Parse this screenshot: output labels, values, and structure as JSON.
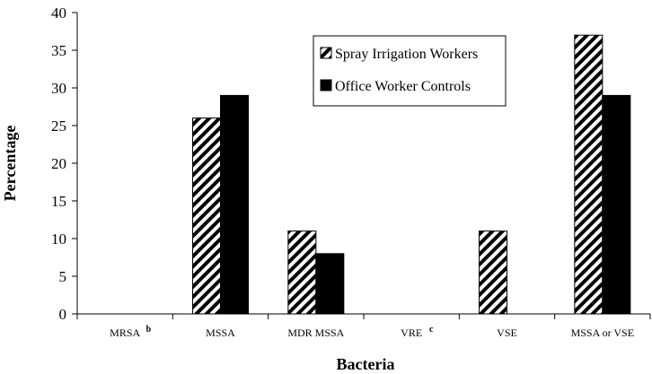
{
  "chart_data": {
    "type": "bar",
    "title": "",
    "xlabel": "Bacteria",
    "ylabel": "Percentage",
    "ylim": [
      0,
      40
    ],
    "yticks": [
      0,
      5,
      10,
      15,
      20,
      25,
      30,
      35,
      40
    ],
    "grid": false,
    "legend_position": "top-right",
    "categories": [
      {
        "label": "MRSA",
        "superscript": "b"
      },
      {
        "label": "MSSA",
        "superscript": ""
      },
      {
        "label": "MDR MSSA",
        "superscript": ""
      },
      {
        "label": "VRE",
        "superscript": "c"
      },
      {
        "label": "VSE",
        "superscript": ""
      },
      {
        "label": "MSSA or VSE",
        "superscript": ""
      }
    ],
    "series": [
      {
        "name": "Spray Irrigation Workers",
        "pattern": "diagonal-hatch",
        "color": "#000000",
        "values": [
          0,
          26,
          11,
          0,
          11,
          37
        ]
      },
      {
        "name": "Office Worker Controls",
        "pattern": "solid",
        "color": "#000000",
        "values": [
          0,
          29,
          8,
          0,
          0,
          29
        ]
      }
    ]
  }
}
